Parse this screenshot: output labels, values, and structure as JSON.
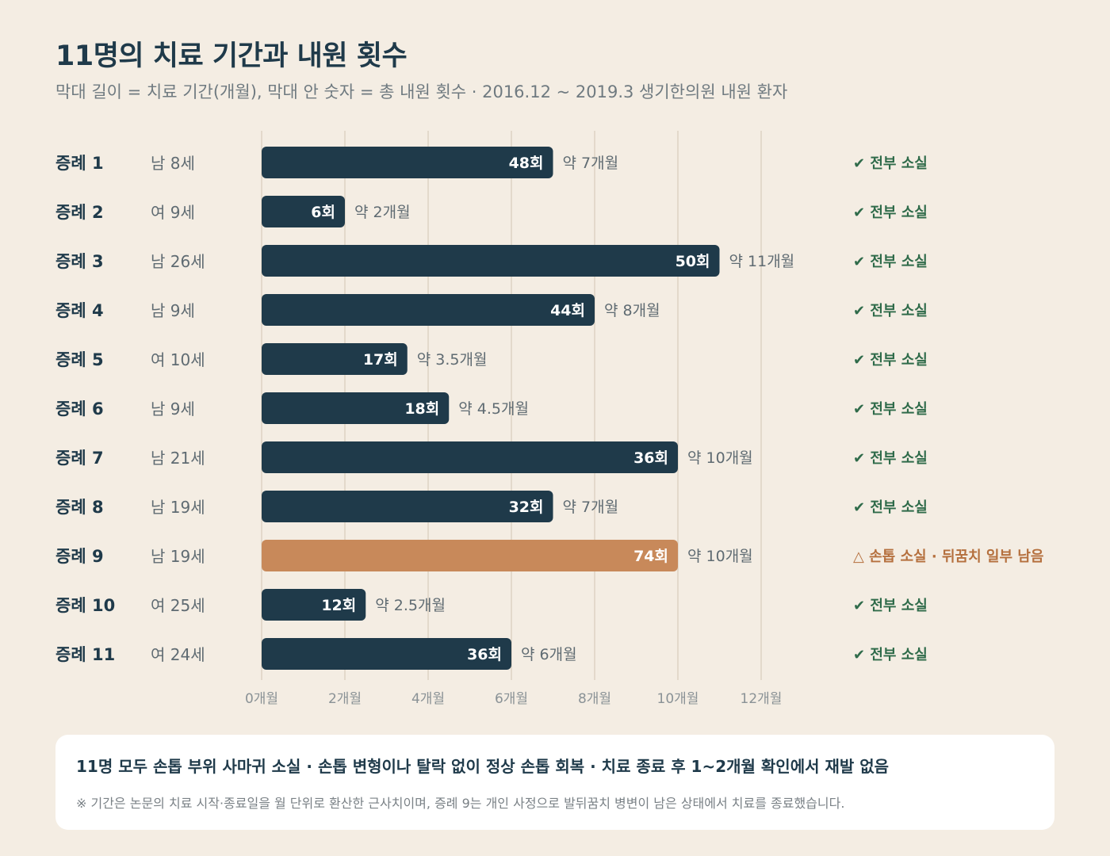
{
  "header": {
    "title": "11명의 치료 기간과 내원 횟수",
    "subtitle": "막대 길이 = 치료 기간(개월), 막대 안 숫자 = 총 내원 횟수 · 2016.12 ~ 2019.3 생기한의원 내원 환자"
  },
  "chart_data": {
    "type": "bar",
    "orientation": "horizontal",
    "x_ticks": [
      "0개월",
      "2개월",
      "4개월",
      "6개월",
      "8개월",
      "10개월",
      "12개월"
    ],
    "xlim": [
      0,
      12
    ],
    "grid": true,
    "colors": {
      "normal": "#1f3a4a",
      "highlight": "#c8895a",
      "status_ok": "#2f6b4a",
      "status_warn": "#b5703e",
      "grid": "#e3d9cb"
    },
    "rows": [
      {
        "case": "증례 1",
        "patient": "남 8세",
        "months": 7,
        "visits": 48,
        "visits_label": "48회",
        "duration_label": "약 7개월",
        "status": "✔ 전부 소실",
        "highlight": false
      },
      {
        "case": "증례 2",
        "patient": "여 9세",
        "months": 2,
        "visits": 6,
        "visits_label": "6회",
        "duration_label": "약 2개월",
        "status": "✔ 전부 소실",
        "highlight": false
      },
      {
        "case": "증례 3",
        "patient": "남 26세",
        "months": 11,
        "visits": 50,
        "visits_label": "50회",
        "duration_label": "약 11개월",
        "status": "✔ 전부 소실",
        "highlight": false
      },
      {
        "case": "증례 4",
        "patient": "남 9세",
        "months": 8,
        "visits": 44,
        "visits_label": "44회",
        "duration_label": "약 8개월",
        "status": "✔ 전부 소실",
        "highlight": false
      },
      {
        "case": "증례 5",
        "patient": "여 10세",
        "months": 3.5,
        "visits": 17,
        "visits_label": "17회",
        "duration_label": "약 3.5개월",
        "status": "✔ 전부 소실",
        "highlight": false
      },
      {
        "case": "증례 6",
        "patient": "남 9세",
        "months": 4.5,
        "visits": 18,
        "visits_label": "18회",
        "duration_label": "약 4.5개월",
        "status": "✔ 전부 소실",
        "highlight": false
      },
      {
        "case": "증례 7",
        "patient": "남 21세",
        "months": 10,
        "visits": 36,
        "visits_label": "36회",
        "duration_label": "약 10개월",
        "status": "✔ 전부 소실",
        "highlight": false
      },
      {
        "case": "증례 8",
        "patient": "남 19세",
        "months": 7,
        "visits": 32,
        "visits_label": "32회",
        "duration_label": "약 7개월",
        "status": "✔ 전부 소실",
        "highlight": false
      },
      {
        "case": "증례 9",
        "patient": "남 19세",
        "months": 10,
        "visits": 74,
        "visits_label": "74회",
        "duration_label": "약 10개월",
        "status": "△ 손톱 소실 · 뒤꿈치 일부 남음",
        "highlight": true
      },
      {
        "case": "증례 10",
        "patient": "여 25세",
        "months": 2.5,
        "visits": 12,
        "visits_label": "12회",
        "duration_label": "약 2.5개월",
        "status": "✔ 전부 소실",
        "highlight": false
      },
      {
        "case": "증례 11",
        "patient": "여 24세",
        "months": 6,
        "visits": 36,
        "visits_label": "36회",
        "duration_label": "약 6개월",
        "status": "✔ 전부 소실",
        "highlight": false
      }
    ]
  },
  "footer": {
    "summary": "11명 모두 손톱 부위 사마귀 소실 · 손톱 변형이나 탈락 없이 정상 손톱 회복 · 치료 종료 후 1~2개월 확인에서 재발 없음",
    "note": "※ 기간은 논문의 치료 시작·종료일을 월 단위로 환산한 근사치이며, 증례 9는 개인 사정으로 발뒤꿈치 병변이 남은 상태에서 치료를 종료했습니다."
  }
}
